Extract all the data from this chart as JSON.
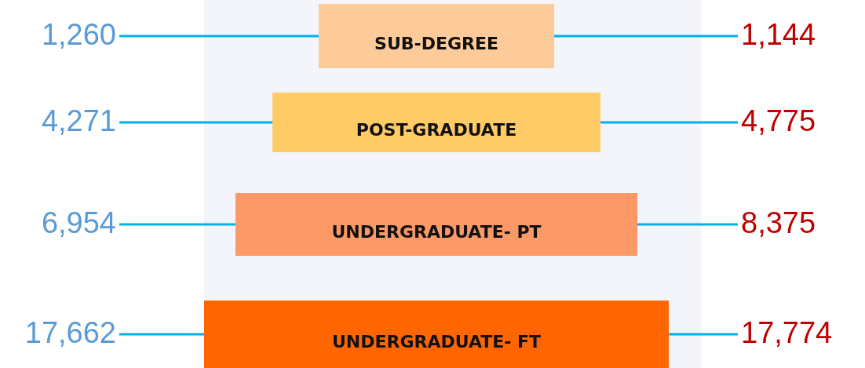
{
  "chart_data": {
    "type": "other",
    "categories": [
      "SUB-DEGREE",
      "POST-GRADUATE",
      "UNDERGRADUATE- PT",
      "UNDERGRADUATE- FT"
    ],
    "colors": [
      "#fdcb99",
      "#fecb66",
      "#fd9966",
      "#ff6600"
    ],
    "series": [
      {
        "color": "#5b9bd5",
        "values": [
          1260,
          4271,
          6954,
          17662
        ],
        "value_labels": [
          "1,260",
          "4,271",
          "6,954",
          "17,662"
        ]
      },
      {
        "color": "#c00000",
        "values": [
          1144,
          4775,
          8375,
          17774
        ],
        "value_labels": [
          "1,144",
          "4,775",
          "8,375",
          "17,774"
        ]
      }
    ]
  }
}
